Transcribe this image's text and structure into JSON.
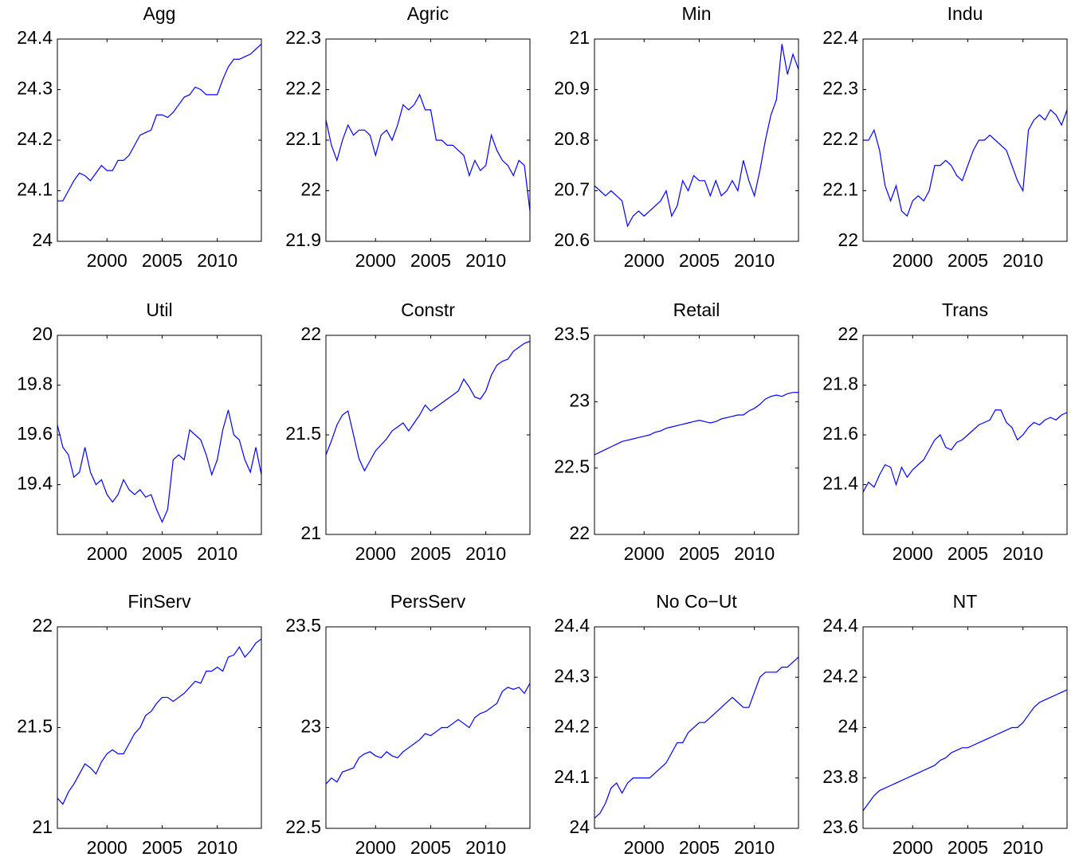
{
  "chart_data": [
    {
      "type": "line",
      "title": "Agg",
      "x": [
        1995.5,
        1996,
        1996.5,
        1997,
        1997.5,
        1998,
        1998.5,
        1999,
        1999.5,
        2000,
        2000.5,
        2001,
        2001.5,
        2002,
        2002.5,
        2003,
        2003.5,
        2004,
        2004.5,
        2005,
        2005.5,
        2006,
        2006.5,
        2007,
        2007.5,
        2008,
        2008.5,
        2009,
        2009.5,
        2010,
        2010.5,
        2011,
        2011.5,
        2012,
        2012.5,
        2013,
        2013.5,
        2014
      ],
      "values": [
        24.08,
        24.08,
        24.1,
        24.12,
        24.135,
        24.13,
        24.12,
        24.135,
        24.15,
        24.14,
        24.14,
        24.16,
        24.16,
        24.17,
        24.19,
        24.21,
        24.215,
        24.22,
        24.25,
        24.25,
        24.245,
        24.255,
        24.27,
        24.285,
        24.29,
        24.305,
        24.3,
        24.29,
        24.29,
        24.29,
        24.32,
        24.345,
        24.36,
        24.36,
        24.365,
        24.37,
        24.38,
        24.39
      ],
      "color": "#0000ff",
      "xlim": [
        1995.5,
        2014
      ],
      "xticks": [
        2000,
        2005,
        2010
      ],
      "ylim": [
        24,
        24.4
      ],
      "yticks": [
        24,
        24.1,
        24.2,
        24.3,
        24.4
      ]
    },
    {
      "type": "line",
      "title": "Agric",
      "x": [
        1995.5,
        1996,
        1996.5,
        1997,
        1997.5,
        1998,
        1998.5,
        1999,
        1999.5,
        2000,
        2000.5,
        2001,
        2001.5,
        2002,
        2002.5,
        2003,
        2003.5,
        2004,
        2004.5,
        2005,
        2005.5,
        2006,
        2006.5,
        2007,
        2007.5,
        2008,
        2008.5,
        2009,
        2009.5,
        2010,
        2010.5,
        2011,
        2011.5,
        2012,
        2012.5,
        2013,
        2013.5,
        2014
      ],
      "values": [
        22.14,
        22.09,
        22.06,
        22.1,
        22.13,
        22.11,
        22.12,
        22.12,
        22.11,
        22.07,
        22.11,
        22.12,
        22.1,
        22.13,
        22.17,
        22.16,
        22.17,
        22.19,
        22.16,
        22.16,
        22.1,
        22.1,
        22.09,
        22.09,
        22.08,
        22.07,
        22.03,
        22.06,
        22.04,
        22.05,
        22.11,
        22.08,
        22.06,
        22.05,
        22.03,
        22.06,
        22.05,
        21.96
      ],
      "color": "#0000ff",
      "xlim": [
        1995.5,
        2014
      ],
      "xticks": [
        2000,
        2005,
        2010
      ],
      "ylim": [
        21.9,
        22.3
      ],
      "yticks": [
        21.9,
        22,
        22.1,
        22.2,
        22.3
      ]
    },
    {
      "type": "line",
      "title": "Min",
      "x": [
        1995.5,
        1996,
        1996.5,
        1997,
        1997.5,
        1998,
        1998.5,
        1999,
        1999.5,
        2000,
        2000.5,
        2001,
        2001.5,
        2002,
        2002.5,
        2003,
        2003.5,
        2004,
        2004.5,
        2005,
        2005.5,
        2006,
        2006.5,
        2007,
        2007.5,
        2008,
        2008.5,
        2009,
        2009.5,
        2010,
        2010.5,
        2011,
        2011.5,
        2012,
        2012.5,
        2013,
        2013.5,
        2014
      ],
      "values": [
        20.71,
        20.7,
        20.69,
        20.7,
        20.69,
        20.68,
        20.63,
        20.65,
        20.66,
        20.65,
        20.66,
        20.67,
        20.68,
        20.7,
        20.65,
        20.67,
        20.72,
        20.7,
        20.73,
        20.72,
        20.72,
        20.69,
        20.72,
        20.69,
        20.7,
        20.72,
        20.7,
        20.76,
        20.72,
        20.69,
        20.74,
        20.8,
        20.85,
        20.88,
        20.99,
        20.93,
        20.97,
        20.94
      ],
      "color": "#0000ff",
      "xlim": [
        1995.5,
        2014
      ],
      "xticks": [
        2000,
        2005,
        2010
      ],
      "ylim": [
        20.6,
        21
      ],
      "yticks": [
        20.6,
        20.7,
        20.8,
        20.9,
        21
      ]
    },
    {
      "type": "line",
      "title": "Indu",
      "x": [
        1995.5,
        1996,
        1996.5,
        1997,
        1997.5,
        1998,
        1998.5,
        1999,
        1999.5,
        2000,
        2000.5,
        2001,
        2001.5,
        2002,
        2002.5,
        2003,
        2003.5,
        2004,
        2004.5,
        2005,
        2005.5,
        2006,
        2006.5,
        2007,
        2007.5,
        2008,
        2008.5,
        2009,
        2009.5,
        2010,
        2010.5,
        2011,
        2011.5,
        2012,
        2012.5,
        2013,
        2013.5,
        2014
      ],
      "values": [
        22.2,
        22.2,
        22.22,
        22.18,
        22.11,
        22.08,
        22.11,
        22.06,
        22.05,
        22.08,
        22.09,
        22.08,
        22.1,
        22.15,
        22.15,
        22.16,
        22.15,
        22.13,
        22.12,
        22.15,
        22.18,
        22.2,
        22.2,
        22.21,
        22.2,
        22.19,
        22.18,
        22.15,
        22.12,
        22.1,
        22.22,
        22.24,
        22.25,
        22.24,
        22.26,
        22.25,
        22.23,
        22.26
      ],
      "color": "#0000ff",
      "xlim": [
        1995.5,
        2014
      ],
      "xticks": [
        2000,
        2005,
        2010
      ],
      "ylim": [
        22,
        22.4
      ],
      "yticks": [
        22,
        22.1,
        22.2,
        22.3,
        22.4
      ]
    },
    {
      "type": "line",
      "title": "Util",
      "x": [
        1995.5,
        1996,
        1996.5,
        1997,
        1997.5,
        1998,
        1998.5,
        1999,
        1999.5,
        2000,
        2000.5,
        2001,
        2001.5,
        2002,
        2002.5,
        2003,
        2003.5,
        2004,
        2004.5,
        2005,
        2005.5,
        2006,
        2006.5,
        2007,
        2007.5,
        2008,
        2008.5,
        2009,
        2009.5,
        2010,
        2010.5,
        2011,
        2011.5,
        2012,
        2012.5,
        2013,
        2013.5,
        2014
      ],
      "values": [
        19.64,
        19.55,
        19.52,
        19.43,
        19.45,
        19.55,
        19.45,
        19.4,
        19.42,
        19.36,
        19.33,
        19.36,
        19.42,
        19.38,
        19.36,
        19.38,
        19.35,
        19.36,
        19.3,
        19.25,
        19.3,
        19.5,
        19.52,
        19.5,
        19.62,
        19.6,
        19.58,
        19.52,
        19.44,
        19.5,
        19.62,
        19.7,
        19.6,
        19.58,
        19.5,
        19.45,
        19.55,
        19.44
      ],
      "color": "#0000ff",
      "xlim": [
        1995.5,
        2014
      ],
      "xticks": [
        2000,
        2005,
        2010
      ],
      "ylim": [
        19.2,
        20
      ],
      "yticks": [
        19.4,
        19.6,
        19.8,
        20
      ]
    },
    {
      "type": "line",
      "title": "Constr",
      "x": [
        1995.5,
        1996,
        1996.5,
        1997,
        1997.5,
        1998,
        1998.5,
        1999,
        1999.5,
        2000,
        2000.5,
        2001,
        2001.5,
        2002,
        2002.5,
        2003,
        2003.5,
        2004,
        2004.5,
        2005,
        2005.5,
        2006,
        2006.5,
        2007,
        2007.5,
        2008,
        2008.5,
        2009,
        2009.5,
        2010,
        2010.5,
        2011,
        2011.5,
        2012,
        2012.5,
        2013,
        2013.5,
        2014
      ],
      "values": [
        21.4,
        21.47,
        21.55,
        21.6,
        21.62,
        21.5,
        21.38,
        21.32,
        21.37,
        21.42,
        21.45,
        21.48,
        21.52,
        21.54,
        21.56,
        21.52,
        21.56,
        21.6,
        21.65,
        21.62,
        21.64,
        21.66,
        21.68,
        21.7,
        21.72,
        21.78,
        21.74,
        21.69,
        21.68,
        21.72,
        21.8,
        21.85,
        21.87,
        21.88,
        21.92,
        21.94,
        21.96,
        21.97
      ],
      "color": "#0000ff",
      "xlim": [
        1995.5,
        2014
      ],
      "xticks": [
        2000,
        2005,
        2010
      ],
      "ylim": [
        21,
        22
      ],
      "yticks": [
        21,
        21.5,
        22
      ]
    },
    {
      "type": "line",
      "title": "Retail",
      "x": [
        1995.5,
        1996,
        1996.5,
        1997,
        1997.5,
        1998,
        1998.5,
        1999,
        1999.5,
        2000,
        2000.5,
        2001,
        2001.5,
        2002,
        2002.5,
        2003,
        2003.5,
        2004,
        2004.5,
        2005,
        2005.5,
        2006,
        2006.5,
        2007,
        2007.5,
        2008,
        2008.5,
        2009,
        2009.5,
        2010,
        2010.5,
        2011,
        2011.5,
        2012,
        2012.5,
        2013,
        2013.5,
        2014
      ],
      "values": [
        22.6,
        22.62,
        22.64,
        22.66,
        22.68,
        22.7,
        22.71,
        22.72,
        22.73,
        22.74,
        22.75,
        22.77,
        22.78,
        22.8,
        22.81,
        22.82,
        22.83,
        22.84,
        22.85,
        22.86,
        22.85,
        22.84,
        22.85,
        22.87,
        22.88,
        22.89,
        22.9,
        22.9,
        22.93,
        22.95,
        22.98,
        23.02,
        23.04,
        23.05,
        23.04,
        23.06,
        23.07,
        23.07
      ],
      "color": "#0000ff",
      "xlim": [
        1995.5,
        2014
      ],
      "xticks": [
        2000,
        2005,
        2010
      ],
      "ylim": [
        22,
        23.5
      ],
      "yticks": [
        22,
        22.5,
        23,
        23.5
      ]
    },
    {
      "type": "line",
      "title": "Trans",
      "x": [
        1995.5,
        1996,
        1996.5,
        1997,
        1997.5,
        1998,
        1998.5,
        1999,
        1999.5,
        2000,
        2000.5,
        2001,
        2001.5,
        2002,
        2002.5,
        2003,
        2003.5,
        2004,
        2004.5,
        2005,
        2005.5,
        2006,
        2006.5,
        2007,
        2007.5,
        2008,
        2008.5,
        2009,
        2009.5,
        2010,
        2010.5,
        2011,
        2011.5,
        2012,
        2012.5,
        2013,
        2013.5,
        2014
      ],
      "values": [
        21.37,
        21.41,
        21.39,
        21.44,
        21.48,
        21.47,
        21.4,
        21.47,
        21.43,
        21.46,
        21.48,
        21.5,
        21.54,
        21.58,
        21.6,
        21.55,
        21.54,
        21.57,
        21.58,
        21.6,
        21.62,
        21.64,
        21.65,
        21.66,
        21.7,
        21.7,
        21.65,
        21.63,
        21.58,
        21.6,
        21.63,
        21.65,
        21.64,
        21.66,
        21.67,
        21.66,
        21.68,
        21.69
      ],
      "color": "#0000ff",
      "xlim": [
        1995.5,
        2014
      ],
      "xticks": [
        2000,
        2005,
        2010
      ],
      "ylim": [
        21.2,
        22
      ],
      "yticks": [
        21.4,
        21.6,
        21.8,
        22
      ]
    },
    {
      "type": "line",
      "title": "FinServ",
      "x": [
        1995.5,
        1996,
        1996.5,
        1997,
        1997.5,
        1998,
        1998.5,
        1999,
        1999.5,
        2000,
        2000.5,
        2001,
        2001.5,
        2002,
        2002.5,
        2003,
        2003.5,
        2004,
        2004.5,
        2005,
        2005.5,
        2006,
        2006.5,
        2007,
        2007.5,
        2008,
        2008.5,
        2009,
        2009.5,
        2010,
        2010.5,
        2011,
        2011.5,
        2012,
        2012.5,
        2013,
        2013.5,
        2014
      ],
      "values": [
        21.15,
        21.12,
        21.18,
        21.22,
        21.27,
        21.32,
        21.3,
        21.27,
        21.33,
        21.37,
        21.39,
        21.37,
        21.37,
        21.42,
        21.47,
        21.5,
        21.56,
        21.58,
        21.62,
        21.65,
        21.65,
        21.63,
        21.65,
        21.67,
        21.7,
        21.73,
        21.72,
        21.78,
        21.78,
        21.8,
        21.78,
        21.85,
        21.86,
        21.9,
        21.85,
        21.88,
        21.92,
        21.94
      ],
      "color": "#0000ff",
      "xlim": [
        1995.5,
        2014
      ],
      "xticks": [
        2000,
        2005,
        2010
      ],
      "ylim": [
        21,
        22
      ],
      "yticks": [
        21,
        21.5,
        22
      ]
    },
    {
      "type": "line",
      "title": "PersServ",
      "x": [
        1995.5,
        1996,
        1996.5,
        1997,
        1997.5,
        1998,
        1998.5,
        1999,
        1999.5,
        2000,
        2000.5,
        2001,
        2001.5,
        2002,
        2002.5,
        2003,
        2003.5,
        2004,
        2004.5,
        2005,
        2005.5,
        2006,
        2006.5,
        2007,
        2007.5,
        2008,
        2008.5,
        2009,
        2009.5,
        2010,
        2010.5,
        2011,
        2011.5,
        2012,
        2012.5,
        2013,
        2013.5,
        2014
      ],
      "values": [
        22.72,
        22.75,
        22.73,
        22.78,
        22.79,
        22.8,
        22.85,
        22.87,
        22.88,
        22.86,
        22.85,
        22.88,
        22.86,
        22.85,
        22.88,
        22.9,
        22.92,
        22.94,
        22.97,
        22.96,
        22.98,
        23.0,
        23.0,
        23.02,
        23.04,
        23.02,
        23.0,
        23.05,
        23.07,
        23.08,
        23.1,
        23.12,
        23.18,
        23.2,
        23.19,
        23.2,
        23.17,
        23.22
      ],
      "color": "#0000ff",
      "xlim": [
        1995.5,
        2014
      ],
      "xticks": [
        2000,
        2005,
        2010
      ],
      "ylim": [
        22.5,
        23.5
      ],
      "yticks": [
        22.5,
        23,
        23.5
      ]
    },
    {
      "type": "line",
      "title": "No Co−Ut",
      "x": [
        1995.5,
        1996,
        1996.5,
        1997,
        1997.5,
        1998,
        1998.5,
        1999,
        1999.5,
        2000,
        2000.5,
        2001,
        2001.5,
        2002,
        2002.5,
        2003,
        2003.5,
        2004,
        2004.5,
        2005,
        2005.5,
        2006,
        2006.5,
        2007,
        2007.5,
        2008,
        2008.5,
        2009,
        2009.5,
        2010,
        2010.5,
        2011,
        2011.5,
        2012,
        2012.5,
        2013,
        2013.5,
        2014
      ],
      "values": [
        24.02,
        24.03,
        24.05,
        24.08,
        24.09,
        24.07,
        24.09,
        24.1,
        24.1,
        24.1,
        24.1,
        24.11,
        24.12,
        24.13,
        24.15,
        24.17,
        24.17,
        24.19,
        24.2,
        24.21,
        24.21,
        24.22,
        24.23,
        24.24,
        24.25,
        24.26,
        24.25,
        24.24,
        24.24,
        24.27,
        24.3,
        24.31,
        24.31,
        24.31,
        24.32,
        24.32,
        24.33,
        24.34
      ],
      "color": "#0000ff",
      "xlim": [
        1995.5,
        2014
      ],
      "xticks": [
        2000,
        2005,
        2010
      ],
      "ylim": [
        24,
        24.4
      ],
      "yticks": [
        24,
        24.1,
        24.2,
        24.3,
        24.4
      ]
    },
    {
      "type": "line",
      "title": "NT",
      "x": [
        1995.5,
        1996,
        1996.5,
        1997,
        1997.5,
        1998,
        1998.5,
        1999,
        1999.5,
        2000,
        2000.5,
        2001,
        2001.5,
        2002,
        2002.5,
        2003,
        2003.5,
        2004,
        2004.5,
        2005,
        2005.5,
        2006,
        2006.5,
        2007,
        2007.5,
        2008,
        2008.5,
        2009,
        2009.5,
        2010,
        2010.5,
        2011,
        2011.5,
        2012,
        2012.5,
        2013,
        2013.5,
        2014
      ],
      "values": [
        23.67,
        23.7,
        23.73,
        23.75,
        23.76,
        23.77,
        23.78,
        23.79,
        23.8,
        23.81,
        23.82,
        23.83,
        23.84,
        23.85,
        23.87,
        23.88,
        23.9,
        23.91,
        23.92,
        23.92,
        23.93,
        23.94,
        23.95,
        23.96,
        23.97,
        23.98,
        23.99,
        24.0,
        24.0,
        24.02,
        24.05,
        24.08,
        24.1,
        24.11,
        24.12,
        24.13,
        24.14,
        24.15
      ],
      "color": "#0000ff",
      "xlim": [
        1995.5,
        2014
      ],
      "xticks": [
        2000,
        2005,
        2010
      ],
      "ylim": [
        23.6,
        24.4
      ],
      "yticks": [
        23.6,
        23.8,
        24,
        24.2,
        24.4
      ]
    }
  ]
}
